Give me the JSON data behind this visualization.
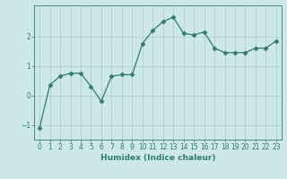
{
  "x": [
    0,
    1,
    2,
    3,
    4,
    5,
    6,
    7,
    8,
    9,
    10,
    11,
    12,
    13,
    14,
    15,
    16,
    17,
    18,
    19,
    20,
    21,
    22,
    23
  ],
  "y": [
    -1.1,
    0.35,
    0.65,
    0.75,
    0.75,
    0.3,
    -0.2,
    0.65,
    0.7,
    0.7,
    1.75,
    2.2,
    2.5,
    2.65,
    2.1,
    2.05,
    2.15,
    1.6,
    1.45,
    1.45,
    1.45,
    1.6,
    1.6,
    1.85
  ],
  "line_color": "#2e7d6e",
  "marker": "D",
  "marker_size": 2.5,
  "bg_color": "#cde8e6",
  "grid_color": "#aecfcc",
  "xlabel": "Humidex (Indice chaleur)",
  "xlim": [
    -0.5,
    23.5
  ],
  "ylim": [
    -1.5,
    3.05
  ],
  "yticks": [
    -1,
    0,
    1,
    2
  ],
  "xticks": [
    0,
    1,
    2,
    3,
    4,
    5,
    6,
    7,
    8,
    9,
    10,
    11,
    12,
    13,
    14,
    15,
    16,
    17,
    18,
    19,
    20,
    21,
    22,
    23
  ],
  "tick_color": "#2e7d6e",
  "label_color": "#2e7d6e",
  "font_size_label": 6.5,
  "font_size_tick": 5.5
}
